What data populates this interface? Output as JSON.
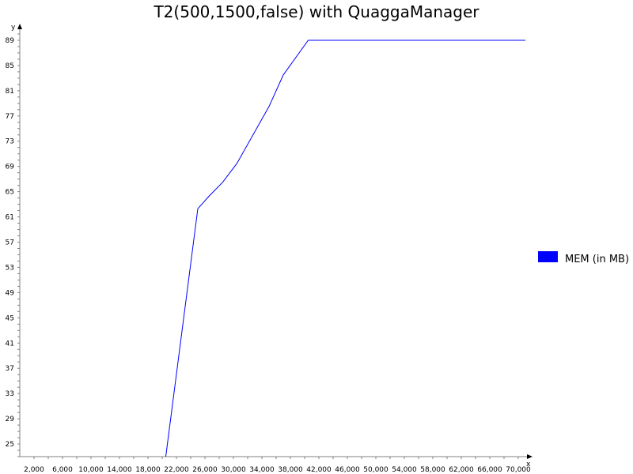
{
  "chart_data": {
    "type": "line",
    "title": "T2(500,1500,false) with QuaggaManager",
    "xlabel": "x",
    "ylabel": "y",
    "xlim": [
      0,
      72000
    ],
    "ylim": [
      23,
      90
    ],
    "x_ticks": [
      2000,
      4000,
      6000,
      8000,
      10000,
      12000,
      14000,
      16000,
      18000,
      20000,
      22000,
      24000,
      26000,
      28000,
      30000,
      32000,
      34000,
      36000,
      38000,
      40000,
      42000,
      44000,
      46000,
      48000,
      50000,
      52000,
      54000,
      56000,
      58000,
      60000,
      62000,
      64000,
      66000,
      68000,
      70000
    ],
    "x_tick_labels": [
      "2,000",
      "6,000",
      "10,000",
      "14,000",
      "18,000",
      "22,000",
      "26,000",
      "30,000",
      "34,000",
      "38,000",
      "42,000",
      "46,000",
      "50,000",
      "54,000",
      "58,000",
      "62,000",
      "66,000",
      "70,000"
    ],
    "y_ticks": [
      23,
      24,
      25,
      26,
      27,
      28,
      29,
      30,
      31,
      32,
      33,
      34,
      35,
      36,
      37,
      38,
      39,
      40,
      41,
      42,
      43,
      44,
      45,
      46,
      47,
      48,
      49,
      50,
      51,
      52,
      53,
      54,
      55,
      56,
      57,
      58,
      59,
      60,
      61,
      62,
      63,
      64,
      65,
      66,
      67,
      68,
      69,
      70,
      71,
      72,
      73,
      74,
      75,
      76,
      77,
      78,
      79,
      80,
      81,
      82,
      83,
      84,
      85,
      86,
      87,
      88,
      89,
      90
    ],
    "y_tick_labels": [
      "25",
      "29",
      "33",
      "37",
      "41",
      "45",
      "49",
      "53",
      "57",
      "61",
      "65",
      "69",
      "73",
      "77",
      "81",
      "85",
      "89"
    ],
    "series": [
      {
        "name": "MEM (in MB)",
        "color": "#0000ff",
        "x": [
          20500,
          25000,
          26500,
          28500,
          30500,
          32500,
          35000,
          37000,
          40500,
          71000
        ],
        "y": [
          23,
          62.3,
          64.2,
          66.5,
          69.5,
          73.5,
          78.5,
          83.5,
          89,
          89
        ]
      }
    ],
    "legend": {
      "placement": "right"
    },
    "grid": false
  }
}
